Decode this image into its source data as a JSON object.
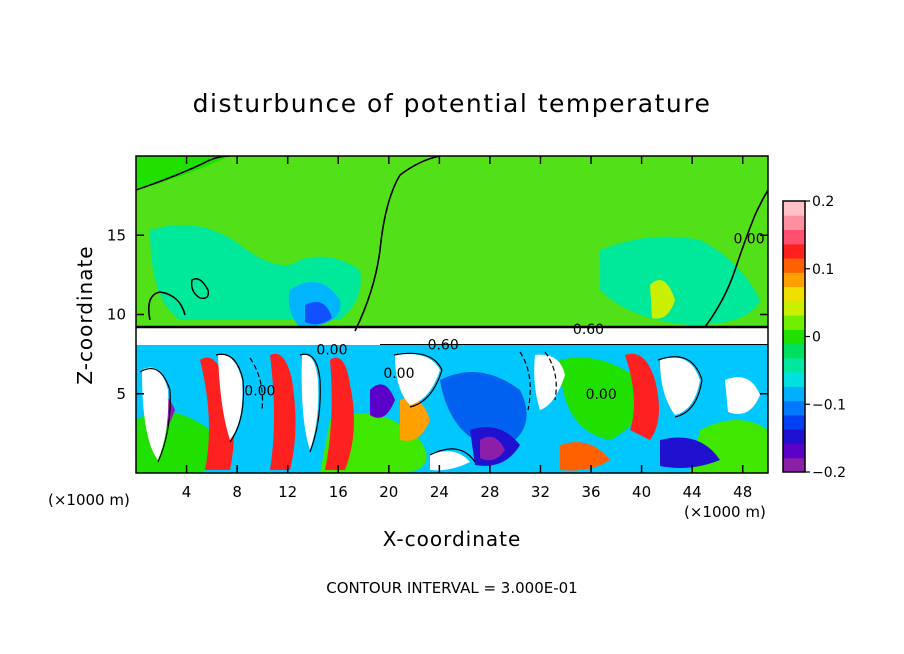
{
  "chart_data": {
    "type": "heatmap",
    "title": "disturbunce of potential temperature",
    "xlabel": "X-coordinate",
    "ylabel": "Z-coordinate",
    "x_unit_left": "(×1000 m)",
    "x_unit_right": "(×1000 m)",
    "footer": "CONTOUR INTERVAL = 3.000E-01",
    "xlim": [
      0,
      50
    ],
    "ylim": [
      0,
      20
    ],
    "x_ticks": [
      4,
      8,
      12,
      16,
      20,
      24,
      28,
      32,
      36,
      40,
      44,
      48
    ],
    "x_tick_labels": [
      "4",
      "8",
      "12",
      "16",
      "20",
      "24",
      "28",
      "32",
      "36",
      "40",
      "44",
      "48"
    ],
    "y_ticks": [
      5,
      10,
      15
    ],
    "y_tick_labels": [
      "5",
      "10",
      "15"
    ],
    "colorbar": {
      "range": [
        -0.2,
        0.2
      ],
      "ticks": [
        0.2,
        0.1,
        0,
        -0.1,
        -0.2
      ],
      "tick_labels": [
        "0.2",
        "0.1",
        "0",
        "−0.1",
        "−0.2"
      ],
      "colors": [
        "#8c1fa8",
        "#5a00c8",
        "#2010d0",
        "#0040f0",
        "#0078ff",
        "#00b0ff",
        "#00e0e0",
        "#00e8a0",
        "#00e060",
        "#20e000",
        "#70f000",
        "#c8f000",
        "#f0e000",
        "#ffa000",
        "#ff6000",
        "#ff2020",
        "#ff5070",
        "#ff90a0",
        "#ffc0c8"
      ]
    },
    "contour_labels": [
      {
        "text": "0.00",
        "x": 48.5,
        "y": 14.8
      },
      {
        "text": "0.60",
        "x": 35.8,
        "y": 9.1
      },
      {
        "text": "0.60",
        "x": 24.3,
        "y": 8.1
      },
      {
        "text": "0.00",
        "x": 15.5,
        "y": 7.8
      },
      {
        "text": "0.00",
        "x": 9.8,
        "y": 5.2
      },
      {
        "text": "0.00",
        "x": 20.8,
        "y": 6.3
      },
      {
        "text": "0.00",
        "x": 36.8,
        "y": 5.0
      }
    ]
  }
}
